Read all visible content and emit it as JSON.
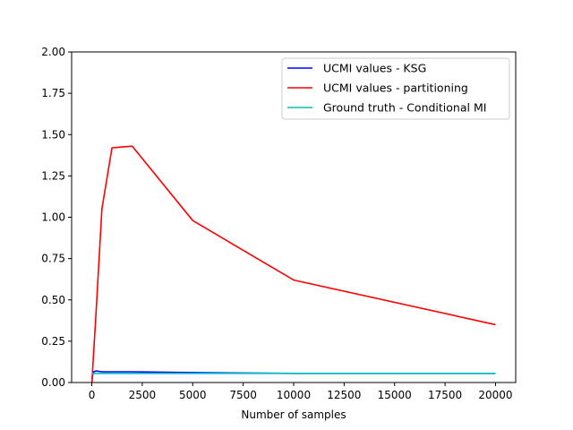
{
  "chart_data": {
    "type": "line",
    "title": "",
    "xlabel": "Number of samples",
    "ylabel": "",
    "xlim": [
      -1000,
      21000
    ],
    "ylim": [
      0,
      2.0
    ],
    "x_ticks": [
      0,
      2500,
      5000,
      7500,
      10000,
      12500,
      15000,
      17500,
      20000
    ],
    "x_tick_labels": [
      "0",
      "2500",
      "5000",
      "7500",
      "10000",
      "12500",
      "15000",
      "17500",
      "20000"
    ],
    "y_ticks": [
      0,
      0.25,
      0.5,
      0.75,
      1.0,
      1.25,
      1.5,
      1.75,
      2.0
    ],
    "y_tick_labels": [
      "0.00",
      "0.25",
      "0.50",
      "0.75",
      "1.00",
      "1.25",
      "1.50",
      "1.75",
      "2.00"
    ],
    "grid": false,
    "legend_position": "top-right",
    "series": [
      {
        "name": "UCMI values - KSG",
        "color": "#0000ff",
        "x": [
          10,
          50,
          100,
          200,
          500,
          1000,
          2000,
          5000,
          10000,
          20000
        ],
        "y": [
          0.02,
          0.05,
          0.065,
          0.07,
          0.065,
          0.065,
          0.065,
          0.06,
          0.055,
          0.055
        ]
      },
      {
        "name": "UCMI values - partitioning",
        "color": "#ff0000",
        "x": [
          10,
          50,
          100,
          200,
          500,
          1000,
          2000,
          5000,
          10000,
          20000
        ],
        "y": [
          0.0,
          0.1,
          0.2,
          0.4,
          1.05,
          1.42,
          1.43,
          0.98,
          0.62,
          0.35
        ]
      },
      {
        "name": "Ground truth - Conditional MI",
        "color": "#00bfbf",
        "x": [
          10,
          50,
          100,
          200,
          500,
          1000,
          2000,
          5000,
          10000,
          20000
        ],
        "y": [
          0.055,
          0.055,
          0.055,
          0.055,
          0.055,
          0.055,
          0.055,
          0.055,
          0.055,
          0.055
        ]
      }
    ]
  }
}
